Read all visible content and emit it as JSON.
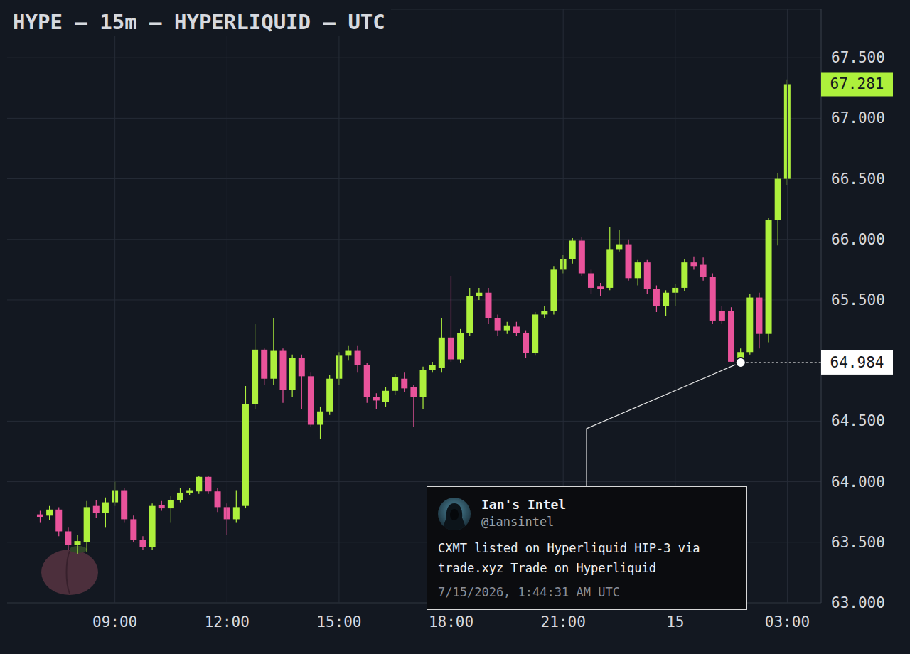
{
  "chart_data": {
    "type": "candlestick",
    "title": "HYPE — 15m — HYPERLIQUID — UTC",
    "categories": [
      null,
      null,
      null,
      null,
      null,
      null,
      null,
      null,
      "09:00",
      null,
      null,
      null,
      null,
      null,
      null,
      null,
      null,
      null,
      null,
      null,
      "12:00",
      null,
      null,
      null,
      null,
      null,
      null,
      null,
      null,
      null,
      null,
      null,
      "15:00",
      null,
      null,
      null,
      null,
      null,
      null,
      null,
      null,
      null,
      null,
      null,
      "18:00",
      null,
      null,
      null,
      null,
      null,
      null,
      null,
      null,
      null,
      null,
      null,
      "21:00",
      null,
      null,
      null,
      null,
      null,
      null,
      null,
      null,
      null,
      null,
      null,
      "15",
      null,
      null,
      null,
      null,
      null,
      null,
      null,
      null,
      null,
      null,
      null,
      "03:00"
    ],
    "open": [
      63.73,
      63.72,
      63.77,
      63.59,
      63.48,
      63.5,
      63.8,
      63.74,
      63.83,
      63.93,
      63.69,
      63.52,
      63.46,
      63.81,
      63.78,
      63.85,
      63.91,
      63.92,
      64.04,
      63.92,
      63.79,
      63.69,
      63.8,
      64.64,
      65.09,
      64.85,
      65.08,
      64.76,
      65.02,
      64.87,
      64.47,
      64.58,
      64.85,
      65.04,
      65.08,
      64.96,
      64.7,
      64.66,
      64.75,
      64.85,
      64.78,
      64.7,
      64.92,
      64.94,
      65.19,
      65.01,
      65.23,
      65.53,
      65.56,
      65.35,
      65.25,
      65.28,
      65.23,
      65.06,
      65.38,
      65.41,
      65.75,
      65.84,
      65.99,
      65.72,
      65.61,
      65.6,
      65.92,
      65.96,
      65.68,
      65.81,
      65.59,
      65.45,
      65.56,
      65.6,
      65.81,
      65.79,
      65.69,
      65.41,
      65.41,
      64.99,
      65.07,
      65.52,
      65.22,
      66.16,
      66.5
    ],
    "high": [
      63.76,
      63.8,
      63.79,
      63.62,
      63.56,
      63.84,
      63.85,
      63.87,
      64.0,
      63.95,
      63.72,
      63.55,
      63.82,
      63.84,
      63.88,
      63.95,
      63.95,
      64.05,
      64.05,
      63.95,
      63.82,
      63.93,
      64.79,
      65.3,
      65.1,
      65.35,
      65.1,
      65.05,
      65.05,
      64.9,
      64.62,
      64.88,
      65.07,
      65.12,
      65.12,
      64.98,
      64.73,
      64.78,
      64.89,
      64.9,
      64.8,
      64.95,
      64.99,
      65.35,
      65.7,
      65.26,
      65.6,
      65.6,
      65.6,
      65.38,
      65.32,
      65.32,
      65.25,
      65.4,
      65.45,
      65.78,
      65.87,
      66.01,
      66.02,
      65.75,
      65.64,
      66.1,
      66.08,
      66.0,
      65.83,
      65.83,
      65.62,
      65.58,
      65.63,
      65.84,
      65.86,
      65.85,
      65.72,
      65.45,
      65.44,
      65.1,
      65.55,
      65.56,
      66.18,
      66.55,
      67.32
    ],
    "low": [
      63.66,
      63.68,
      63.55,
      63.44,
      63.4,
      63.42,
      63.7,
      63.62,
      63.8,
      63.66,
      63.5,
      63.44,
      63.44,
      63.76,
      63.66,
      63.83,
      63.89,
      63.9,
      63.9,
      63.75,
      63.56,
      63.66,
      63.78,
      64.6,
      64.8,
      64.8,
      64.65,
      64.7,
      64.6,
      64.45,
      64.35,
      64.55,
      64.8,
      65.0,
      64.9,
      64.65,
      64.6,
      64.62,
      64.72,
      64.74,
      64.45,
      64.6,
      64.9,
      64.9,
      64.99,
      64.98,
      65.2,
      65.5,
      65.3,
      65.2,
      65.22,
      65.2,
      65.02,
      65.04,
      65.35,
      65.38,
      65.72,
      65.8,
      65.7,
      65.55,
      65.53,
      65.58,
      65.9,
      65.66,
      65.62,
      65.55,
      65.4,
      65.37,
      65.45,
      65.57,
      65.75,
      65.66,
      65.3,
      65.3,
      64.99,
      64.984,
      65.05,
      65.1,
      65.15,
      65.95,
      66.45
    ],
    "close": [
      63.71,
      63.77,
      63.59,
      63.48,
      63.51,
      63.79,
      63.74,
      63.83,
      63.93,
      63.69,
      63.52,
      63.46,
      63.8,
      63.78,
      63.85,
      63.91,
      63.93,
      64.04,
      63.92,
      63.79,
      63.69,
      63.79,
      64.64,
      65.09,
      64.85,
      65.08,
      64.76,
      65.02,
      64.87,
      64.47,
      64.58,
      64.85,
      65.04,
      65.08,
      64.96,
      64.7,
      64.67,
      64.75,
      64.86,
      64.77,
      64.7,
      64.92,
      64.96,
      65.19,
      65.01,
      65.23,
      65.53,
      65.56,
      65.35,
      65.25,
      65.29,
      65.23,
      65.06,
      65.38,
      65.41,
      65.75,
      65.84,
      65.99,
      65.72,
      65.6,
      65.59,
      65.92,
      65.96,
      65.68,
      65.81,
      65.59,
      65.45,
      65.56,
      65.6,
      65.81,
      65.78,
      65.69,
      65.33,
      65.33,
      64.99,
      65.07,
      65.52,
      65.22,
      66.16,
      66.5,
      67.281
    ],
    "ylim": [
      63,
      67.9
    ],
    "yticks": [
      {
        "value": 63,
        "label": "63.000"
      },
      {
        "value": 63.5,
        "label": "63.500"
      },
      {
        "value": 64,
        "label": "64.000"
      },
      {
        "value": 64.5,
        "label": "64.500"
      },
      {
        "value": 65.5,
        "label": "65.500"
      },
      {
        "value": 66,
        "label": "66.000"
      },
      {
        "value": 66.5,
        "label": "66.500"
      },
      {
        "value": 67,
        "label": "67.000"
      },
      {
        "value": 67.5,
        "label": "67.500"
      }
    ],
    "grid": true,
    "last_price": 67.281,
    "annotations": [
      {
        "name": "Ian's Intel",
        "handle": "@iansintel",
        "text": "CXMT listed on Hyperliquid HIP-3 via trade.xyz Trade on Hyperliquid",
        "time": "7/15/2026, 1:44:31 AM UTC",
        "value": 64.984
      }
    ]
  }
}
